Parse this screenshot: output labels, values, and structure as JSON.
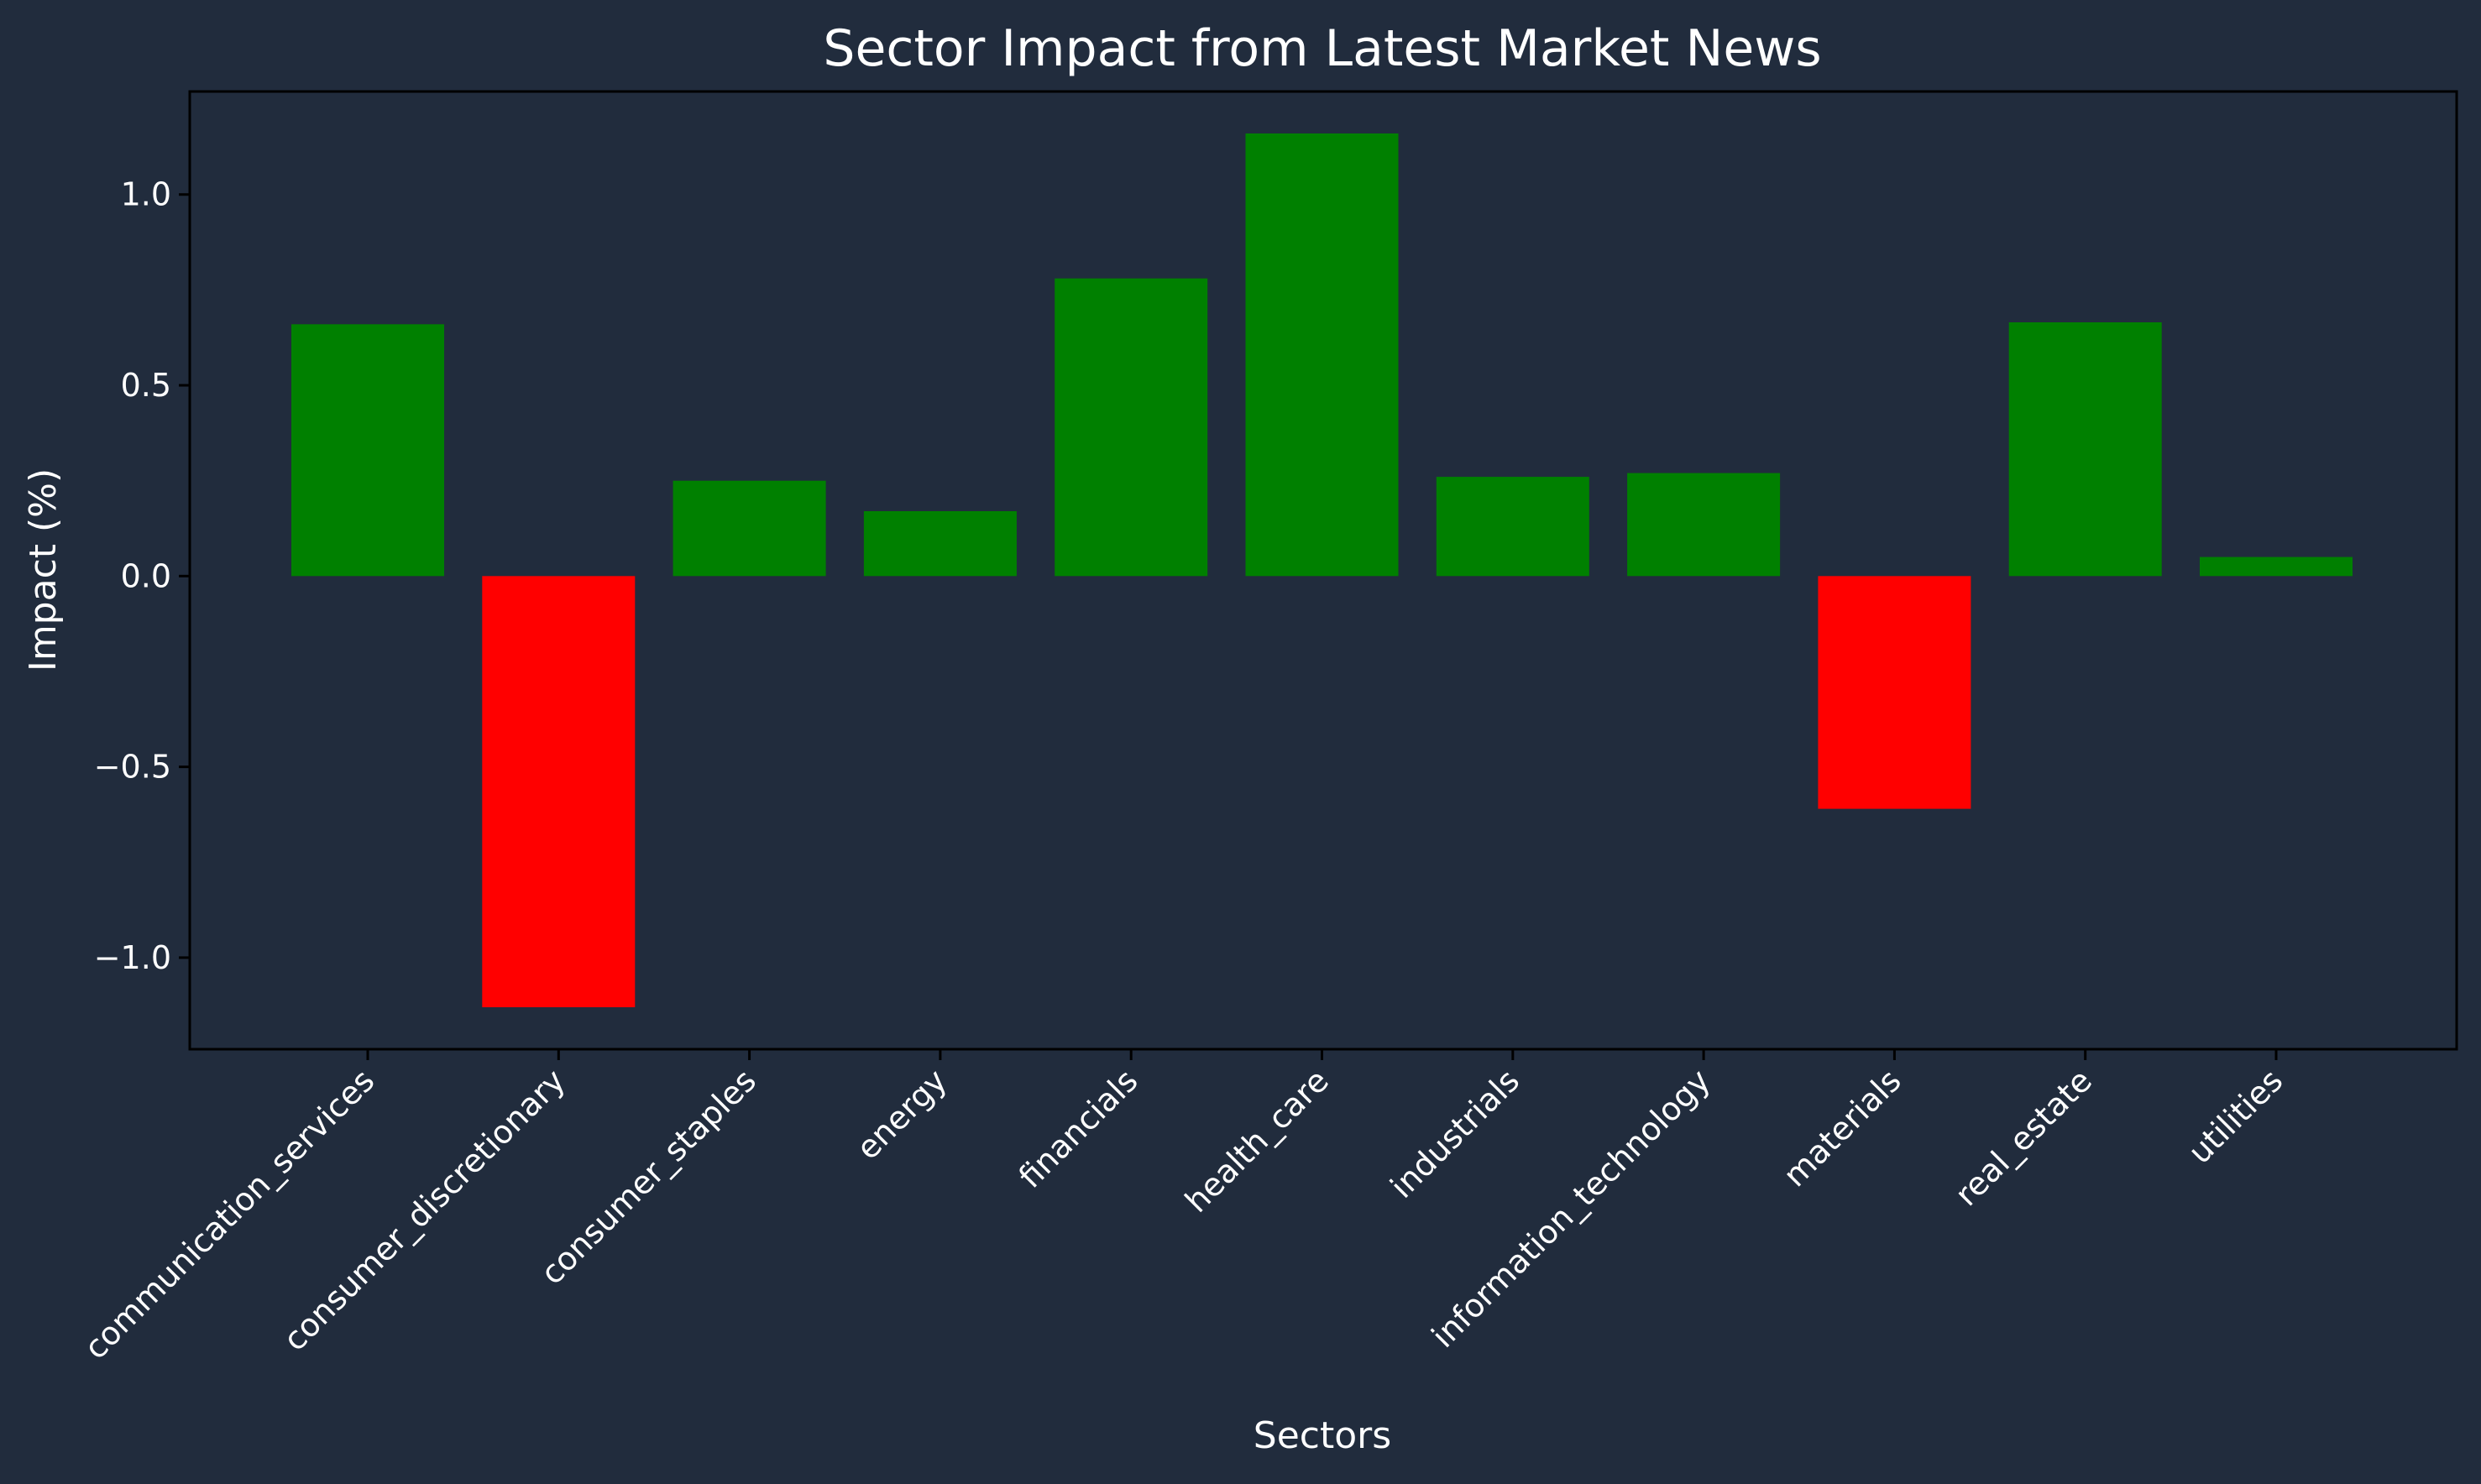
{
  "chart_data": {
    "type": "bar",
    "title": "Sector Impact from Latest Market News",
    "xlabel": "Sectors",
    "ylabel": "Impact (%)",
    "categories": [
      "communication_services",
      "consumer_discretionary",
      "consumer_staples",
      "energy",
      "financials",
      "health_care",
      "industrials",
      "information_technology",
      "materials",
      "real_estate",
      "utilities"
    ],
    "values": [
      0.66,
      -1.13,
      0.25,
      0.17,
      0.78,
      1.16,
      0.26,
      0.27,
      -0.61,
      0.665,
      0.05
    ],
    "ylim": [
      -1.24,
      1.27
    ],
    "yticks": [
      1.0,
      0.5,
      0.0,
      -0.5,
      -1.0
    ],
    "ytick_labels": [
      "1.0",
      "0.5",
      "0.0",
      "−0.5",
      "−1.0"
    ],
    "grid": false,
    "legend": "none",
    "colors": {
      "positive": "#008000",
      "negative": "#ff0000",
      "background": "#212c3d",
      "axes": "#000000",
      "text": "#ffffff"
    }
  }
}
